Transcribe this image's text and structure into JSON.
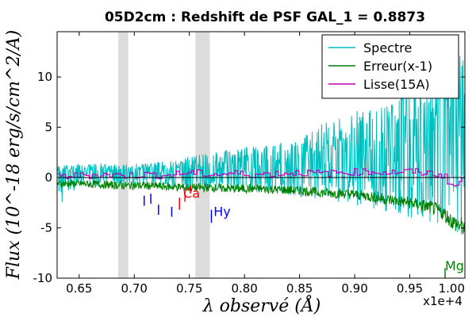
{
  "chart_data": {
    "type": "line",
    "title": "05D2cm : Redshift de PSF GAL_1 = 0.8873",
    "xlabel": "λ observé (Å)",
    "ylabel": "Flux (10^-18 erg/s/cm^2/A)",
    "x_offset_label": "x1e+4",
    "xlim": [
      0.63,
      1.0
    ],
    "ylim": [
      -10,
      14.5
    ],
    "xticks": [
      0.65,
      0.7,
      0.75,
      0.8,
      0.85,
      0.9,
      0.95,
      1.0
    ],
    "xtick_labels": [
      "0.65",
      "0.70",
      "0.75",
      "0.80",
      "0.85",
      "0.90",
      "0.95",
      "1.00"
    ],
    "yticks": [
      -10,
      -5,
      0,
      5,
      10
    ],
    "ytick_labels": [
      "-10",
      "-5",
      "0",
      "5",
      "10"
    ],
    "grid": false,
    "legend_position": "top-right",
    "shaded_bands": [
      [
        0.6855,
        0.6945
      ],
      [
        0.7555,
        0.7685
      ]
    ],
    "series": [
      {
        "name": "Spectre",
        "color": "#00bfbf",
        "x": [
          0.63,
          0.65,
          0.67,
          0.69,
          0.71,
          0.73,
          0.75,
          0.77,
          0.79,
          0.81,
          0.83,
          0.85,
          0.87,
          0.89,
          0.91,
          0.93,
          0.95,
          0.97,
          0.98,
          0.99,
          1.0
        ],
        "y": [
          0.3,
          0.5,
          0.6,
          0.4,
          0.6,
          0.5,
          0.8,
          0.7,
          0.9,
          0.8,
          1.0,
          1.2,
          1.1,
          1.5,
          2.0,
          1.8,
          2.5,
          3.5,
          4.0,
          5.0,
          4.0
        ],
        "y_low": [
          -3.0,
          -0.8,
          -0.8,
          -0.9,
          -0.9,
          -1.0,
          -1.2,
          -1.3,
          -1.4,
          -1.5,
          -1.7,
          -2.0,
          -2.2,
          -2.5,
          -3.0,
          -3.5,
          -4.0,
          -4.5,
          -5.0,
          -6.0,
          -8.0
        ],
        "y_high": [
          1.2,
          1.3,
          1.4,
          1.3,
          1.5,
          1.6,
          2.2,
          2.5,
          2.8,
          3.2,
          3.5,
          4.0,
          5.5,
          6.0,
          7.5,
          8.0,
          9.5,
          11.0,
          12.0,
          14.5,
          14.0
        ]
      },
      {
        "name": "Erreur(x-1)",
        "color": "#008000",
        "x": [
          0.63,
          0.65,
          0.67,
          0.69,
          0.71,
          0.73,
          0.75,
          0.77,
          0.79,
          0.81,
          0.83,
          0.85,
          0.87,
          0.89,
          0.91,
          0.93,
          0.95,
          0.97,
          0.98,
          0.99,
          1.0
        ],
        "y": [
          -0.6,
          -0.6,
          -0.7,
          -0.8,
          -0.8,
          -0.9,
          -1.0,
          -1.0,
          -1.1,
          -1.1,
          -1.2,
          -1.3,
          -1.5,
          -1.6,
          -1.8,
          -2.2,
          -2.5,
          -3.0,
          -3.5,
          -4.5,
          -5.0
        ]
      },
      {
        "name": "Lisse(15A)",
        "color": "#bf00bf",
        "x": [
          0.63,
          0.65,
          0.67,
          0.69,
          0.71,
          0.73,
          0.75,
          0.77,
          0.79,
          0.81,
          0.83,
          0.85,
          0.87,
          0.89,
          0.91,
          0.93,
          0.95,
          0.97,
          0.98,
          0.99,
          1.0
        ],
        "y": [
          0.1,
          0.2,
          0.3,
          0.2,
          0.3,
          0.2,
          0.5,
          0.3,
          0.4,
          0.3,
          0.4,
          0.5,
          0.4,
          0.5,
          0.6,
          0.5,
          0.6,
          0.4,
          0.2,
          -1.0,
          0.2
        ]
      }
    ],
    "line_markers": [
      {
        "x": 0.709,
        "y_top": -1.8,
        "y_bot": -2.8,
        "color": "#0000ff"
      },
      {
        "x": 0.715,
        "y_top": -1.6,
        "y_bot": -2.6,
        "color": "#0000ff"
      },
      {
        "x": 0.722,
        "y_top": -2.7,
        "y_bot": -3.7,
        "color": "#0000ff"
      },
      {
        "x": 0.734,
        "y_top": -2.9,
        "y_bot": -3.9,
        "color": "#0000ff"
      },
      {
        "x": 0.741,
        "y_top": -2.0,
        "y_bot": -3.2,
        "color": "#ff0000"
      },
      {
        "x": 0.746,
        "y_top": -1.3,
        "y_bot": -2.4,
        "color": "#ff0000"
      },
      {
        "x": 0.751,
        "y_top": -0.8,
        "y_bot": -1.6,
        "color": "#ff0000"
      },
      {
        "x": 0.77,
        "y_top": -3.2,
        "y_bot": -4.5,
        "color": "#0000ff"
      },
      {
        "x": 0.982,
        "y_top": -9.0,
        "y_bot": -10.0,
        "color": "#008000"
      }
    ],
    "annotations": [
      {
        "text": "Ca",
        "x": 0.7445,
        "y": -2.0,
        "color": "#ff0000"
      },
      {
        "text": "Hy",
        "x": 0.772,
        "y": -3.8,
        "color": "#0000ff"
      },
      {
        "text": "Mg",
        "x": 0.982,
        "y": -9.2,
        "color": "#008000"
      }
    ]
  }
}
